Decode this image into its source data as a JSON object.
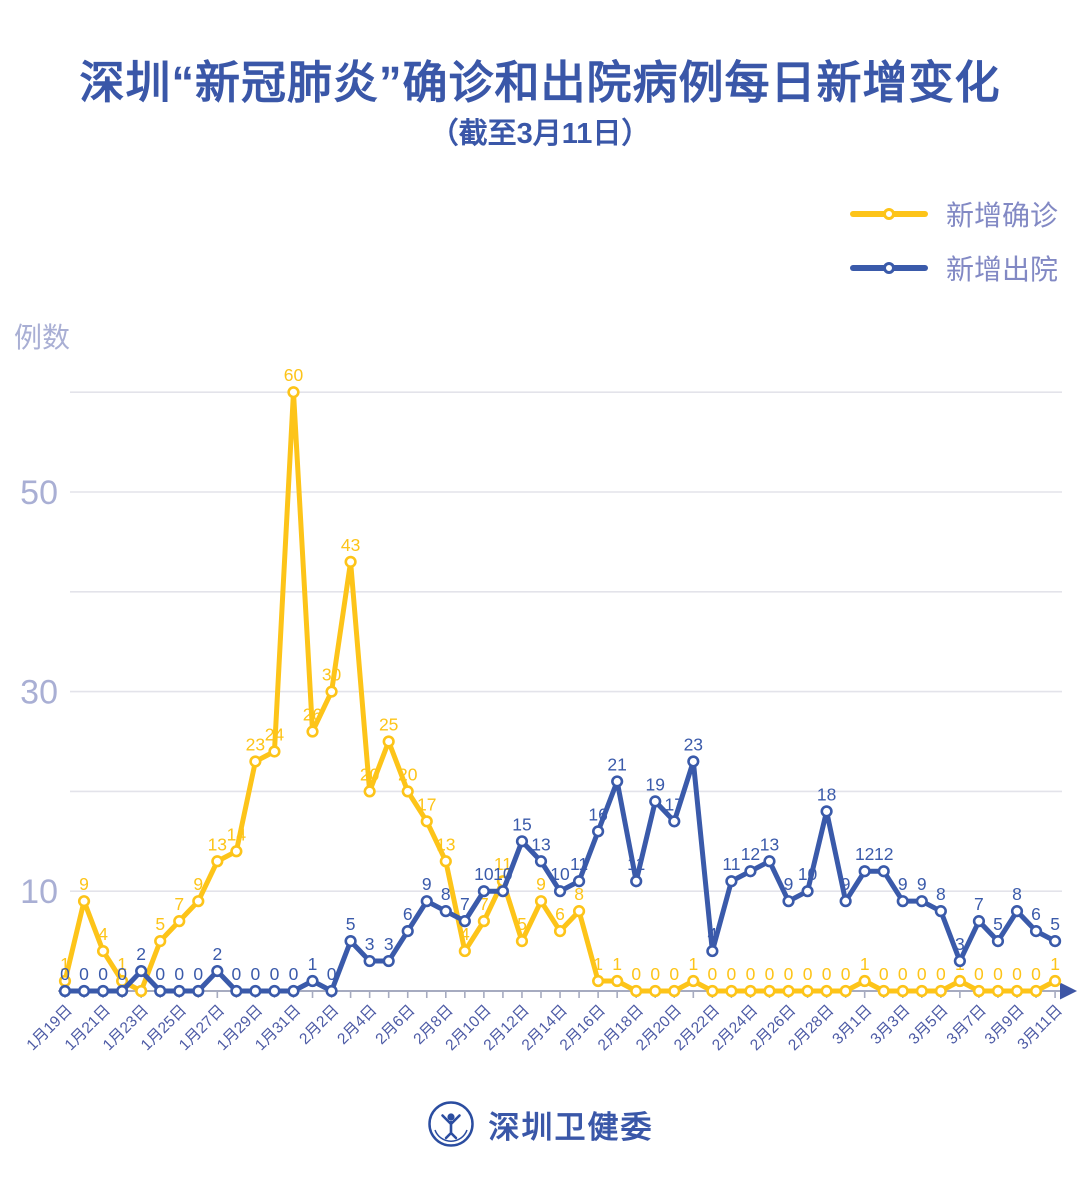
{
  "title": "深圳“新冠肺炎”确诊和出院病例每日新增变化",
  "subtitle": "（截至3月11日）",
  "legend": {
    "confirmed": "新增确诊",
    "discharged": "新增出院"
  },
  "y_axis": {
    "unit_label": "例数",
    "tick_labels": [
      10,
      30,
      50
    ]
  },
  "footer": {
    "brand": "深圳卫健委"
  },
  "colors": {
    "line_yellow": "#fdc419",
    "line_blue": "#3a5aaa",
    "title_blue": "#3a57a8",
    "muted_axis_label": "#a9afd4",
    "legend_text": "#8289c4",
    "date_label": "#4c5aa5",
    "grid": "#e3e3ea",
    "axis_line": "#a6abc0"
  },
  "chart_data": {
    "type": "line",
    "title": "深圳“新冠肺炎”确诊和出院病例每日新增变化",
    "subtitle": "（截至3月11日）",
    "ylabel": "例数",
    "ylim": [
      0,
      62
    ],
    "gridlines": [
      10,
      20,
      30,
      40,
      50,
      60
    ],
    "y_labeled_ticks": [
      10,
      30,
      50
    ],
    "x_tick_step": 2,
    "legend_position": "top-right",
    "point_labels": true,
    "x": [
      "1月19日",
      "1月20日",
      "1月21日",
      "1月22日",
      "1月23日",
      "1月24日",
      "1月25日",
      "1月26日",
      "1月27日",
      "1月28日",
      "1月29日",
      "1月30日",
      "1月31日",
      "2月1日",
      "2月2日",
      "2月3日",
      "2月4日",
      "2月5日",
      "2月6日",
      "2月7日",
      "2月8日",
      "2月9日",
      "2月10日",
      "2月11日",
      "2月12日",
      "2月13日",
      "2月14日",
      "2月15日",
      "2月16日",
      "2月17日",
      "2月18日",
      "2月19日",
      "2月20日",
      "2月21日",
      "2月22日",
      "2月23日",
      "2月24日",
      "2月25日",
      "2月26日",
      "2月27日",
      "2月28日",
      "2月29日",
      "3月1日",
      "3月2日",
      "3月3日",
      "3月4日",
      "3月5日",
      "3月6日",
      "3月7日",
      "3月8日",
      "3月9日",
      "3月10日",
      "3月11日"
    ],
    "series": [
      {
        "name": "新增确诊",
        "color": "#fdc419",
        "values": [
          1,
          9,
          4,
          1,
          0,
          5,
          7,
          9,
          13,
          14,
          23,
          24,
          60,
          26,
          30,
          43,
          20,
          25,
          20,
          17,
          13,
          4,
          7,
          11,
          5,
          9,
          6,
          8,
          1,
          1,
          0,
          0,
          0,
          1,
          0,
          0,
          0,
          0,
          0,
          0,
          0,
          0,
          1,
          0,
          0,
          0,
          0,
          1,
          0,
          0,
          0,
          0,
          1
        ]
      },
      {
        "name": "新增出院",
        "color": "#3a5aaa",
        "values": [
          0,
          0,
          0,
          0,
          2,
          0,
          0,
          0,
          2,
          0,
          0,
          0,
          0,
          1,
          0,
          5,
          3,
          3,
          6,
          9,
          8,
          7,
          10,
          10,
          15,
          13,
          10,
          11,
          16,
          21,
          11,
          19,
          17,
          23,
          4,
          11,
          12,
          13,
          9,
          10,
          18,
          9,
          12,
          12,
          9,
          9,
          8,
          3,
          7,
          5,
          8,
          6,
          5
        ]
      }
    ]
  }
}
